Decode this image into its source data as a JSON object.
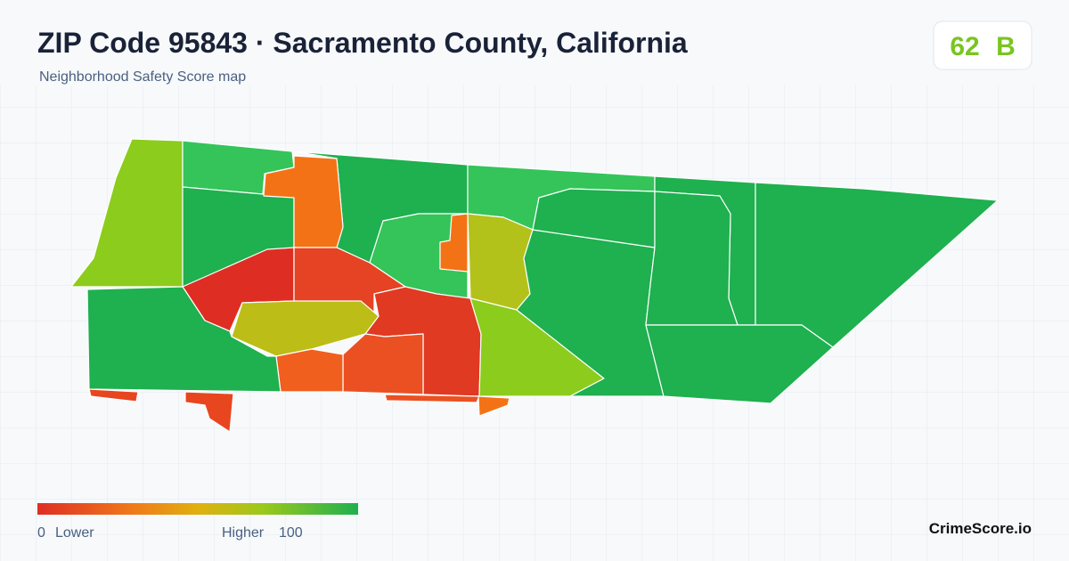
{
  "header": {
    "title": "ZIP Code 95843 · Sacramento County, California",
    "subtitle": "Neighborhood Safety Score map"
  },
  "badge": {
    "score": 62,
    "grade": "B"
  },
  "legend": {
    "min": 0,
    "min_label": "Lower",
    "max_label": "Higher",
    "max": 100
  },
  "footer": {
    "brand": "CrimeScore.io"
  }
}
